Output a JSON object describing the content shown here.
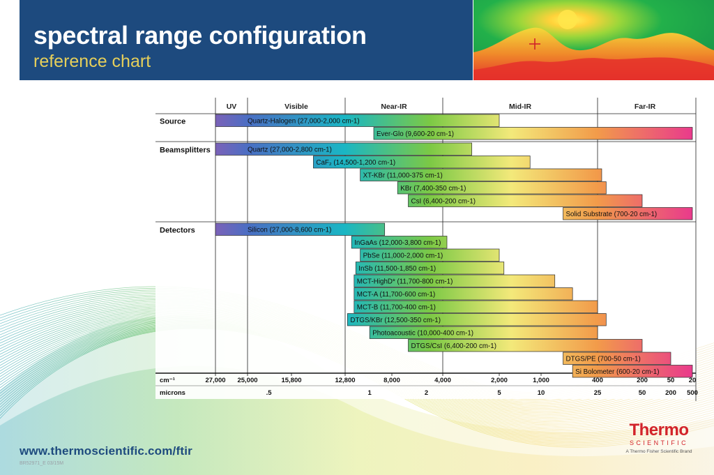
{
  "header": {
    "title": "spectral range configuration",
    "subtitle": "reference chart"
  },
  "footer": {
    "url": "www.thermoscientific.com/ftir",
    "code": "BR52971_E 03/15M"
  },
  "logo": {
    "wordmark": "Thermo",
    "subword": "SCIENTIFIC",
    "tagline": "A Thermo Fisher Scientific Brand"
  },
  "colors": {
    "header_bg": "#1d4a7e",
    "subtitle": "#e6cf5a",
    "logo_red": "#d2232a"
  },
  "chart_data": {
    "type": "bar",
    "orientation": "horizontal-range",
    "title": "",
    "xunit": "cm⁻¹",
    "xlim": [
      27000,
      20
    ],
    "grid": true,
    "regions": [
      {
        "name": "UV",
        "from": 27000,
        "to": 25000
      },
      {
        "name": "Visible",
        "from": 25000,
        "to": 12800
      },
      {
        "name": "Near-IR",
        "from": 12800,
        "to": 4000
      },
      {
        "name": "Mid-IR",
        "from": 4000,
        "to": 400
      },
      {
        "name": "Far-IR",
        "from": 400,
        "to": 20
      }
    ],
    "groups": [
      {
        "name": "Source",
        "items": [
          {
            "label": "Quartz-Halogen (27,000-2,000 cm-1)",
            "from": 27000,
            "to": 2000
          },
          {
            "label": "Ever-Glo (9,600-20 cm-1)",
            "from": 9600,
            "to": 20
          }
        ]
      },
      {
        "name": "Beamsplitters",
        "items": [
          {
            "label": "Quartz (27,000-2,800 cm-1)",
            "from": 27000,
            "to": 2800
          },
          {
            "label": "CaF₂ (14,500-1,200 cm-1)",
            "from": 14500,
            "to": 1200
          },
          {
            "label": "XT-KBr (11,000-375 cm-1)",
            "from": 11000,
            "to": 375
          },
          {
            "label": "KBr (7,400-350 cm-1)",
            "from": 7400,
            "to": 350
          },
          {
            "label": "CsI (6,400-200 cm-1)",
            "from": 6400,
            "to": 200
          },
          {
            "label": "Solid Substrate (700-20 cm-1)",
            "from": 700,
            "to": 20
          }
        ]
      },
      {
        "name": "Detectors",
        "items": [
          {
            "label": "Silicon (27,000-8,600 cm-1)",
            "from": 27000,
            "to": 8600
          },
          {
            "label": "InGaAs (12,000-3,800 cm-1)",
            "from": 12000,
            "to": 3800
          },
          {
            "label": "PbSe (11,000-2,000 cm-1)",
            "from": 11000,
            "to": 2000
          },
          {
            "label": "InSb (11,500-1,850 cm-1)",
            "from": 11500,
            "to": 1850
          },
          {
            "label": "MCT-HighD* (11,700-800 cm-1)",
            "from": 11700,
            "to": 800
          },
          {
            "label": "MCT-A (11,700-600 cm-1)",
            "from": 11700,
            "to": 600
          },
          {
            "label": "MCT-B (11,700-400 cm-1)",
            "from": 11700,
            "to": 400
          },
          {
            "label": "DTGS/KBr (12,500-350 cm-1)",
            "from": 12500,
            "to": 350
          },
          {
            "label": "Photoacoustic (10,000-400 cm-1)",
            "from": 10000,
            "to": 400
          },
          {
            "label": "DTGS/CsI (6,400-200 cm-1)",
            "from": 6400,
            "to": 200
          },
          {
            "label": "DTGS/PE (700-50 cm-1)",
            "from": 700,
            "to": 50
          },
          {
            "label": "Si Bolometer (600-20 cm-1)",
            "from": 600,
            "to": 20
          }
        ]
      }
    ],
    "axis_cm": {
      "label": "cm⁻¹",
      "ticks": [
        27000,
        25000,
        15800,
        12800,
        8000,
        4000,
        2000,
        1000,
        400,
        200,
        50,
        20
      ],
      "tick_labels": [
        "27,000",
        "25,000",
        "15,800",
        "12,800",
        "8,000",
        "4,000",
        "2,000",
        "1,000",
        "400",
        "200",
        "50",
        "20"
      ]
    },
    "axis_microns": {
      "label": "microns",
      "ticks": [
        0.5,
        1,
        2,
        5,
        10,
        25,
        50,
        200,
        500
      ],
      "tick_labels": [
        ".5",
        "1",
        "2",
        "5",
        "10",
        "25",
        "50",
        "200",
        "500"
      ]
    }
  }
}
